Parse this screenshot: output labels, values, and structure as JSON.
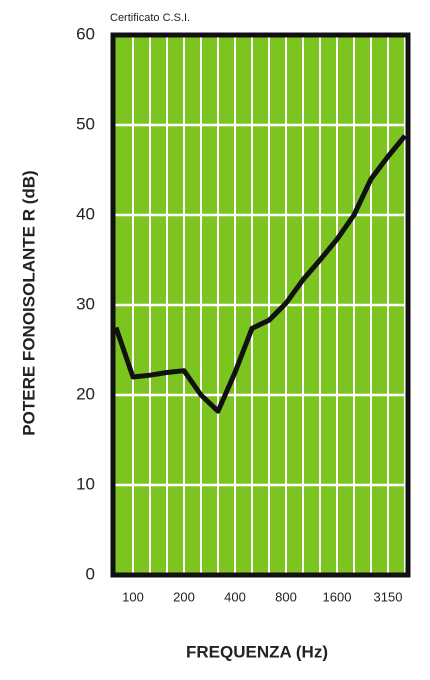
{
  "chart_data": {
    "type": "line",
    "note": "Certificato C.S.I.",
    "xlabel": "FREQUENZA (Hz)",
    "ylabel": "POTERE FONOISOLANTE R (dB)",
    "categories": [
      null,
      "100",
      null,
      null,
      "200",
      null,
      null,
      "400",
      null,
      null,
      "800",
      null,
      null,
      "1600",
      null,
      null,
      "3150",
      null
    ],
    "values": [
      27.5,
      22,
      22.2,
      22.5,
      22.7,
      20,
      18.2,
      22.5,
      27.4,
      28.3,
      30.2,
      32.8,
      35,
      37.3,
      40,
      44,
      46.5,
      48.8
    ],
    "color": "#111111",
    "background": "#7cc520",
    "ylim": [
      0,
      60
    ],
    "yticks": [
      0,
      10,
      20,
      30,
      40,
      50,
      60
    ],
    "grid": true
  }
}
